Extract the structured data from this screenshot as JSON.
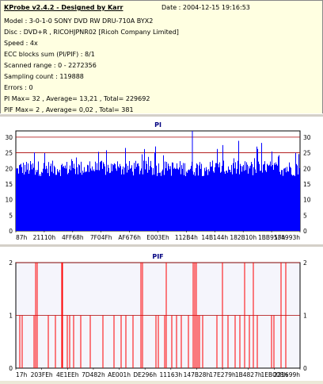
{
  "info": {
    "title": "KProbe v2.4.2 - Designed by Karr",
    "date": "Date : 2004-12-15 19:16:53",
    "lines": [
      "Model : 3-0-1-0 SONY    DVD RW DRU-710A  BYX2",
      "Disc : DVD+R , RICOHJPNR02 [Ricoh Company Limited]",
      "Speed : 4x",
      "ECC blocks sum (PI/PIF) : 8/1",
      "Scanned range : 0 - 2272356",
      "Sampling count : 119888",
      "Errors : 0",
      "PI Max= 32 , Average= 13,21 , Total= 229692",
      "PIF Max= 2 , Average= 0,02 , Total= 381"
    ]
  },
  "colors": {
    "pi": "#0000ff",
    "pif": "#ff0000",
    "ref": "#aa0000",
    "title": "#000080"
  },
  "chart_data": [
    {
      "type": "bar",
      "title": "PI",
      "ylim": [
        0,
        32
      ],
      "yticks": [
        0,
        5,
        10,
        15,
        20,
        25,
        30
      ],
      "ref_lines": [
        25,
        30
      ],
      "xticks": [
        "87h",
        "21110h",
        "4FF68h",
        "7F04Fh",
        "AF676h",
        "E003Eh",
        "112B4h",
        "14B144h",
        "182B10h",
        "1BB953h",
        "1F4993h"
      ],
      "base_level": 20,
      "max": 32,
      "average": 13.21
    },
    {
      "type": "bar",
      "title": "PIF",
      "ylim": [
        0,
        2
      ],
      "yticks": [
        0,
        1,
        2
      ],
      "ref_lines": [
        1,
        2
      ],
      "xticks": [
        "17h",
        "203FEh",
        "4E1EEh",
        "7D482h",
        "AE001h",
        "DE296h",
        "11163h",
        "147B28h",
        "17E279h",
        "1B4827h",
        "1EB008h",
        "221699h"
      ],
      "max": 2,
      "average": 0.02
    }
  ]
}
